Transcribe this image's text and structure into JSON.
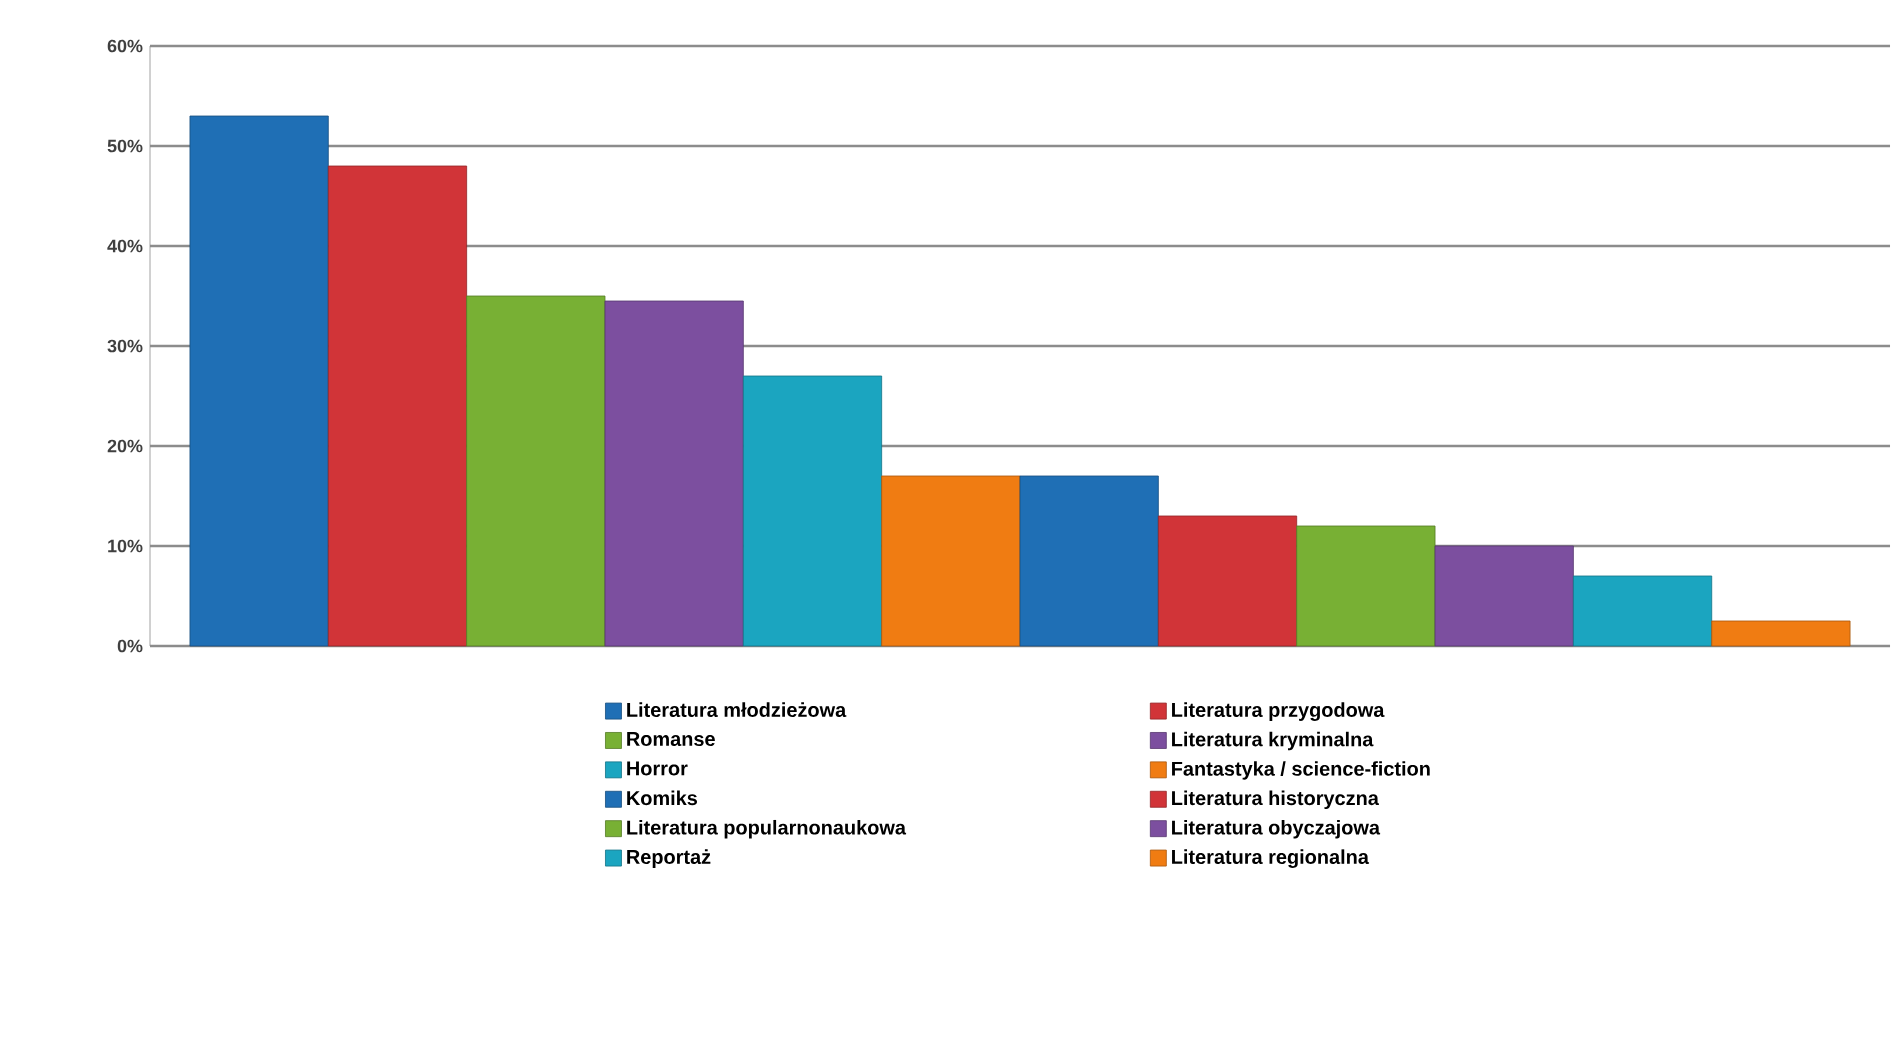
{
  "chart_data": {
    "type": "bar",
    "categories": [
      null
    ],
    "series": [
      {
        "name": "Literatura młodzieżowa",
        "color": "#1f6fb5",
        "values": [
          53
        ]
      },
      {
        "name": "Literatura przygodowa",
        "color": "#d13438",
        "values": [
          48
        ]
      },
      {
        "name": "Romanse",
        "color": "#78b034",
        "values": [
          35
        ]
      },
      {
        "name": "Literatura kryminalna",
        "color": "#7c4f9f",
        "values": [
          34.5
        ]
      },
      {
        "name": "Horror",
        "color": "#1ba5c0",
        "values": [
          27
        ]
      },
      {
        "name": "Fantastyka / science-fiction",
        "color": "#f07c12",
        "values": [
          17
        ]
      },
      {
        "name": "Komiks",
        "color": "#1f6fb5",
        "values": [
          17
        ]
      },
      {
        "name": "Literatura historyczna",
        "color": "#d13438",
        "values": [
          13
        ]
      },
      {
        "name": "Literatura popularnonaukowa",
        "color": "#78b034",
        "values": [
          12
        ]
      },
      {
        "name": "Literatura obyczajowa",
        "color": "#7c4f9f",
        "values": [
          10
        ]
      },
      {
        "name": "Reportaż",
        "color": "#1ba5c0",
        "values": [
          7
        ]
      },
      {
        "name": "Literatura regionalna",
        "color": "#f07c12",
        "values": [
          2.5
        ]
      }
    ],
    "ylim": [
      0,
      60
    ],
    "yticks": [
      {
        "value": 0,
        "label": "0%"
      },
      {
        "value": 10,
        "label": "10%"
      },
      {
        "value": 20,
        "label": "20%"
      },
      {
        "value": 30,
        "label": "30%"
      },
      {
        "value": 40,
        "label": "40%"
      },
      {
        "value": 50,
        "label": "50%"
      },
      {
        "value": 60,
        "label": "60%"
      }
    ],
    "grid": "y",
    "legend": "bottom",
    "tick_labels": "y"
  }
}
